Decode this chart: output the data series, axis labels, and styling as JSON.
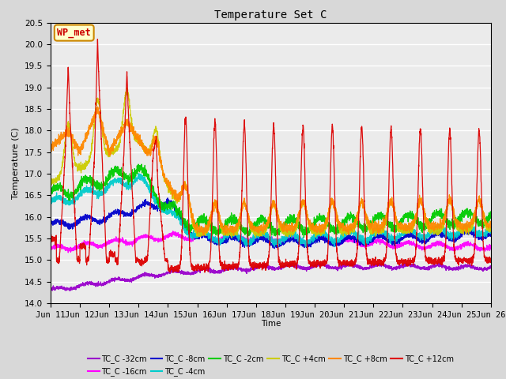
{
  "title": "Temperature Set C",
  "xlabel": "Time",
  "ylabel": "Temperature (C)",
  "ylim": [
    14.0,
    20.5
  ],
  "annotation_text": "WP_met",
  "annotation_bg": "#ffffcc",
  "annotation_border": "#cc8800",
  "annotation_text_color": "#cc0000",
  "plot_bg": "#ebebeb",
  "fig_bg": "#d8d8d8",
  "series": [
    {
      "label": "TC_C -32cm",
      "color": "#9900cc"
    },
    {
      "label": "TC_C -16cm",
      "color": "#ff00ff"
    },
    {
      "label": "TC_C -8cm",
      "color": "#0000cc"
    },
    {
      "label": "TC_C -4cm",
      "color": "#00cccc"
    },
    {
      "label": "TC_C -2cm",
      "color": "#00cc00"
    },
    {
      "label": "TC_C +4cm",
      "color": "#cccc00"
    },
    {
      "label": "TC_C +8cm",
      "color": "#ff8800"
    },
    {
      "label": "TC_C +12cm",
      "color": "#dd0000"
    }
  ],
  "x_tick_labels": [
    "Jun 11",
    "Jun 12",
    "Jun 13",
    "Jun 14",
    "Jun 15",
    "Jun 16",
    "Jun 17",
    "Jun 18",
    "Jun 19",
    "Jun 20",
    "Jun 21",
    "Jun 22",
    "Jun 23",
    "Jun 24",
    "Jun 25",
    "Jun 26"
  ],
  "n_days": 15,
  "pts_per_day": 240
}
